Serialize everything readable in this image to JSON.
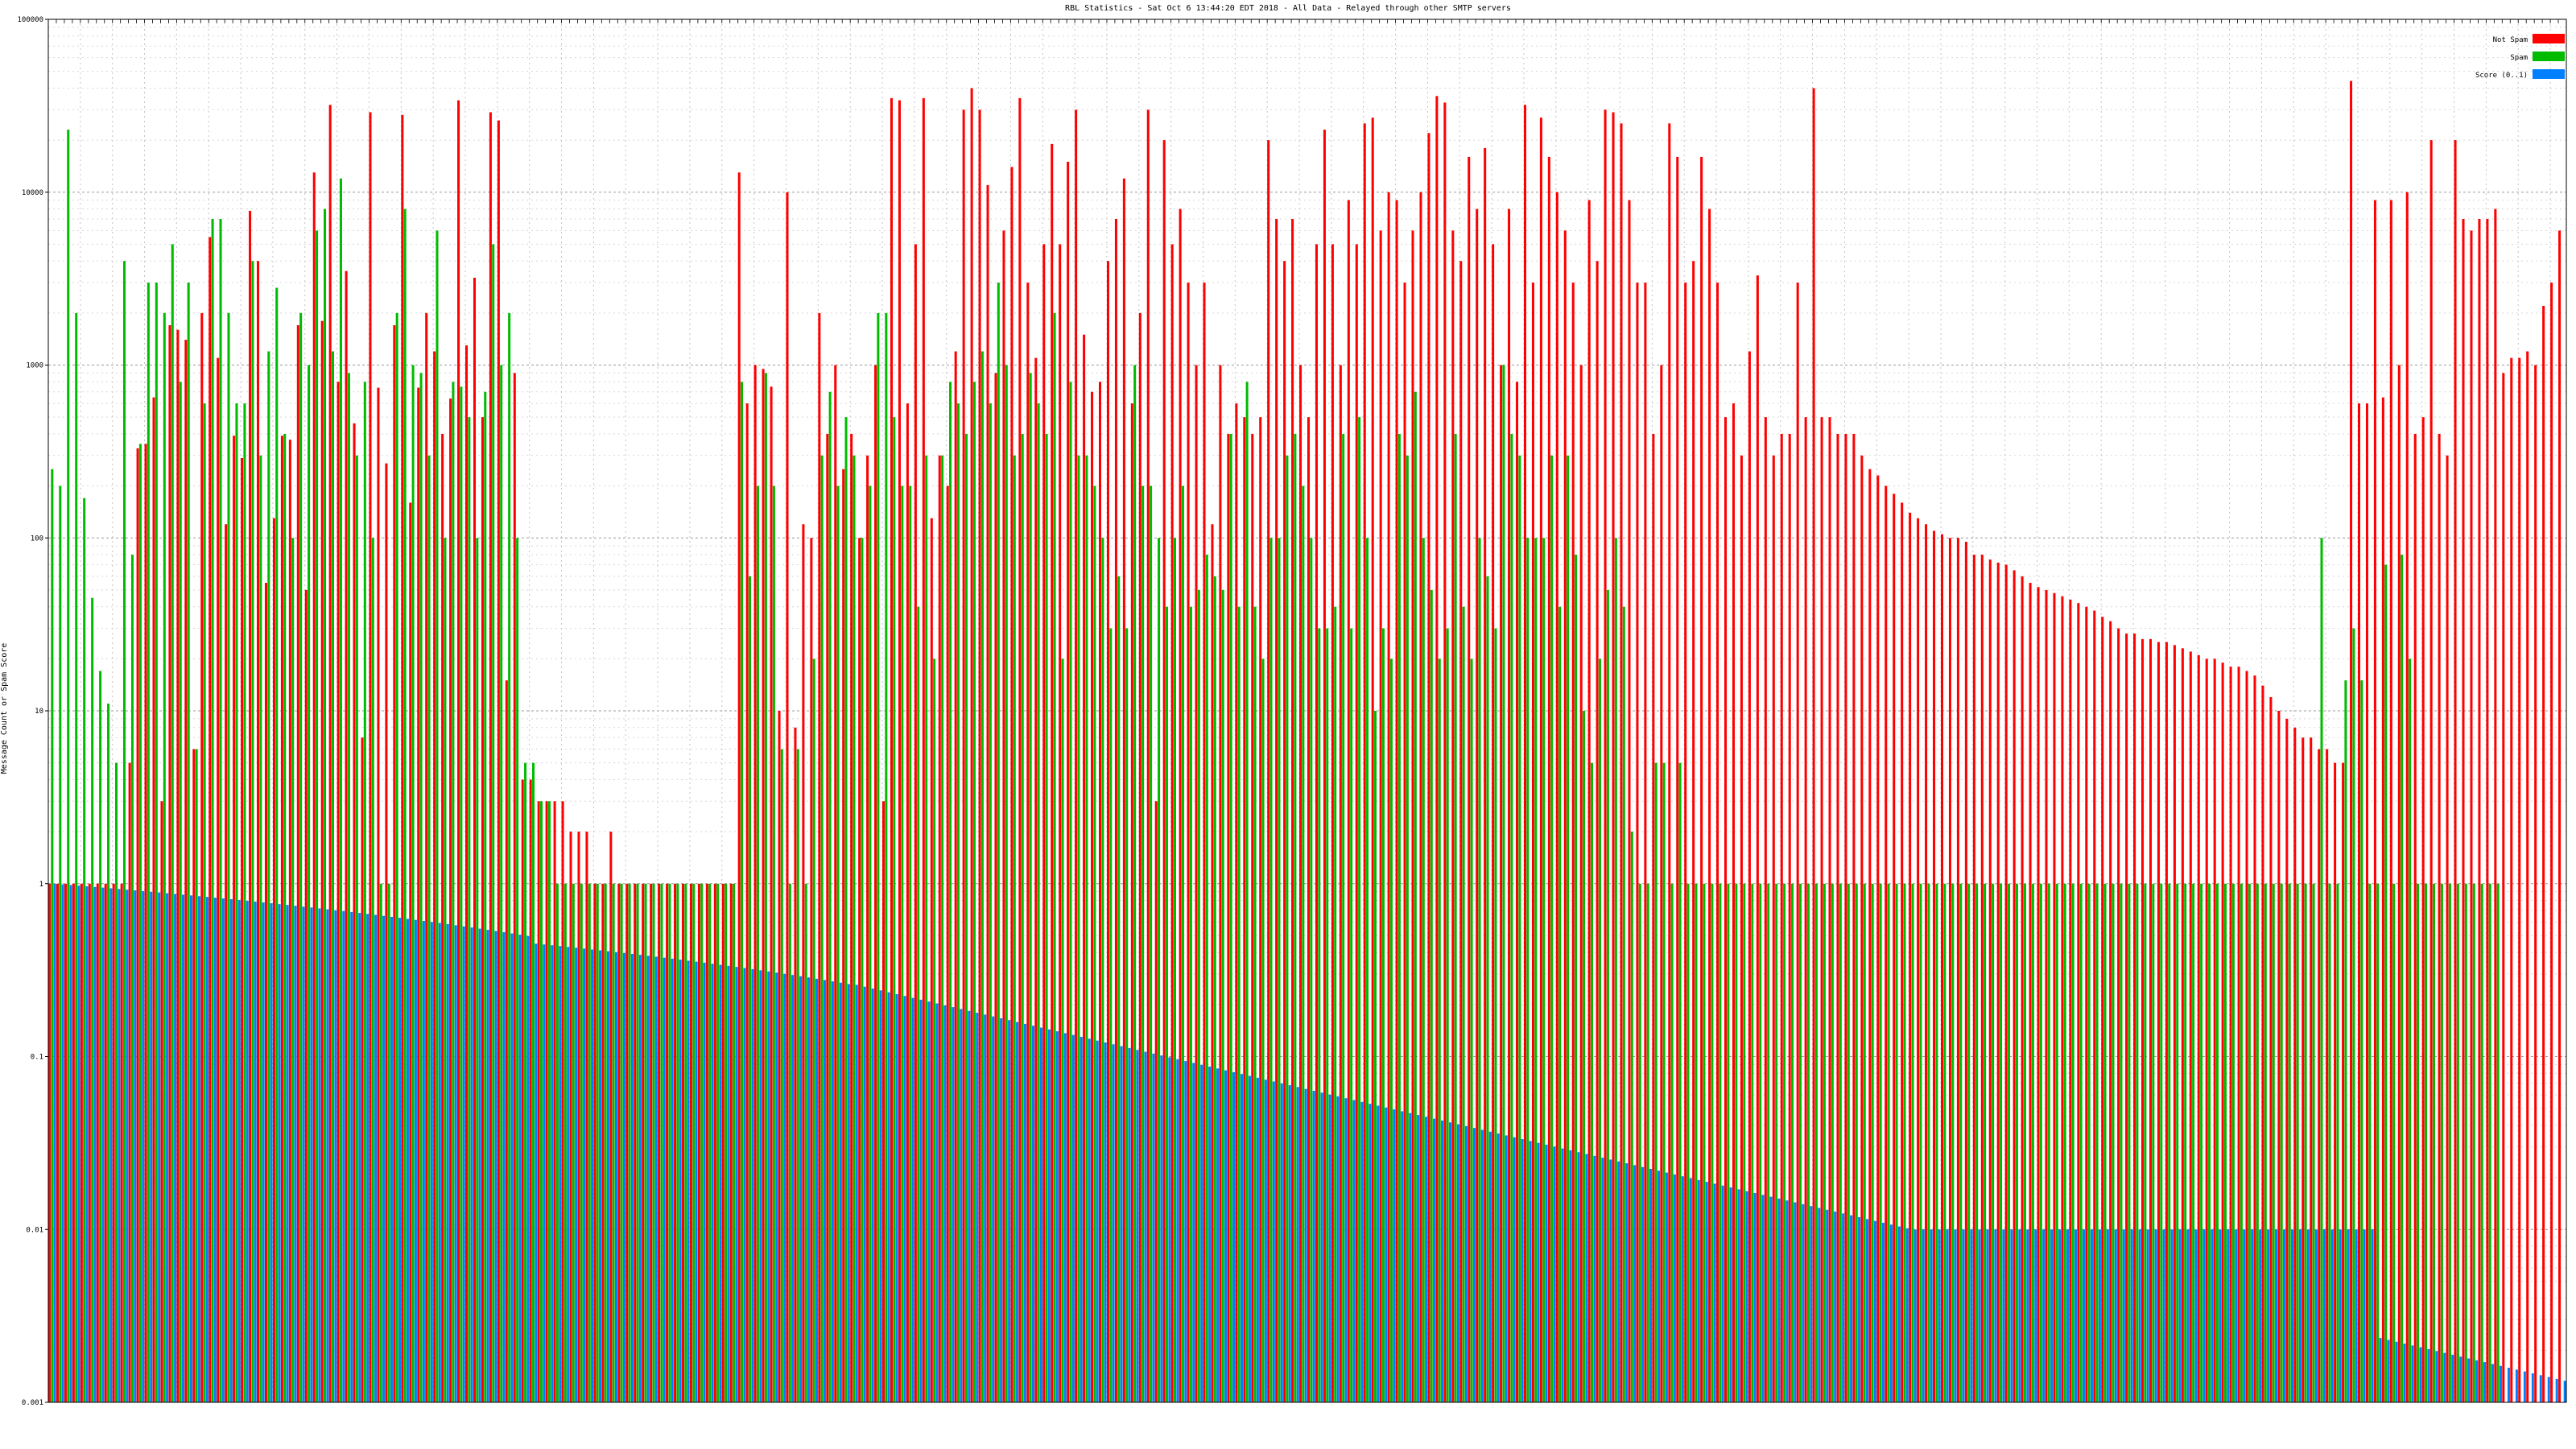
{
  "chart_data": {
    "type": "bar",
    "title": "RBL Statistics - Sat Oct  6 13:44:20 EDT 2018 - All Data - Relayed through other SMTP servers",
    "ylabel": "Message Count or Spam Score",
    "xlabel": "",
    "y_scale": "log",
    "ylim": [
      0.001,
      100000
    ],
    "y_ticks": [
      0.001,
      0.01,
      0.1,
      1,
      10,
      100,
      1000,
      10000,
      100000
    ],
    "y_tick_labels": [
      "0.001",
      "0.01",
      "0.1",
      "1",
      "10",
      "100",
      "1000",
      "10000",
      "100000"
    ],
    "grid": true,
    "legend_position": "top-right",
    "colors": {
      "not_spam": "#ff0000",
      "spam": "#00bb00",
      "score": "#0080ff"
    },
    "series": [
      {
        "name": "Not Spam",
        "color": "#ff0000",
        "key": "not_spam"
      },
      {
        "name": "Spam",
        "color": "#00bb00",
        "key": "spam"
      },
      {
        "name": "Score (0..1)",
        "color": "#0080ff",
        "key": "score"
      }
    ],
    "not_spam": [
      1,
      1,
      1,
      1,
      1,
      1,
      1,
      1,
      1,
      1,
      5,
      330,
      350,
      650,
      3,
      1700,
      1600,
      1400,
      6,
      2000,
      5500,
      1100,
      120,
      390,
      290,
      7800,
      4000,
      55,
      130,
      390,
      370,
      1700,
      50,
      13000,
      1800,
      32000,
      800,
      3500,
      460,
      7,
      29000,
      740,
      270,
      1700,
      28000,
      160,
      740,
      2000,
      1200,
      400,
      640,
      34000,
      1300,
      3200,
      500,
      29000,
      26000,
      15,
      900,
      4,
      4,
      3,
      3,
      3,
      3,
      2,
      2,
      2,
      1,
      1,
      2,
      1,
      1,
      1,
      1,
      1,
      1,
      1,
      1,
      1,
      1,
      1,
      1,
      1,
      1,
      1,
      13000,
      600,
      1000,
      950,
      750,
      10,
      10000,
      8,
      120,
      100,
      2000,
      400,
      1000,
      250,
      400,
      100,
      300,
      1000,
      3,
      35000,
      34000,
      600,
      5000,
      35000,
      130,
      300,
      200,
      1200,
      30000,
      40000,
      30000,
      11000,
      900,
      6000,
      14000,
      35000,
      3000,
      1100,
      5000,
      19000,
      5000,
      15000,
      30000,
      1500,
      700,
      800,
      4000,
      7000,
      12000,
      600,
      2000,
      30000,
      3,
      20000,
      5000,
      8000,
      3000,
      1000,
      3000,
      120,
      1000,
      400,
      600,
      500,
      400,
      500,
      20000,
      7000,
      4000,
      7000,
      1000,
      500,
      5000,
      23000,
      5000,
      1000,
      9000,
      5000,
      25000,
      27000,
      6000,
      10000,
      9000,
      3000,
      6000,
      10000,
      22000,
      36000,
      33000,
      6000,
      4000,
      16000,
      8000,
      18000,
      5000,
      1000,
      8000,
      800,
      32000,
      3000,
      27000,
      16000,
      10000,
      6000,
      3000,
      1000,
      9000,
      4000,
      30000,
      29000,
      25000,
      9000,
      3000,
      3000,
      400,
      1000,
      25000,
      16000,
      3000,
      4000,
      16000,
      8000,
      3000,
      500,
      600,
      300,
      1200,
      3300,
      500,
      300,
      400,
      400,
      3000,
      500,
      40000,
      500,
      500,
      400,
      400,
      400,
      300,
      250,
      230,
      200,
      180,
      160,
      140,
      130,
      120,
      110,
      105,
      100,
      100,
      95,
      80,
      80,
      75,
      72,
      70,
      65,
      60,
      55,
      52,
      50,
      48,
      46,
      44,
      42,
      40,
      38,
      35,
      33,
      30,
      28,
      28,
      26,
      26,
      25,
      25,
      24,
      23,
      22,
      21,
      20,
      20,
      19,
      18,
      18,
      17,
      16,
      14,
      12,
      10,
      9,
      8,
      7,
      7,
      6,
      6,
      5,
      5,
      44000,
      600,
      600,
      9000,
      650,
      9000,
      1000,
      10000,
      400,
      500,
      20000,
      400,
      300,
      20000,
      7000,
      6000,
      7000,
      7000,
      8000,
      900,
      1100,
      1100,
      1200,
      1000,
      2200,
      3000,
      6000
    ],
    "spam": [
      250,
      200,
      23000,
      2000,
      170,
      45,
      17,
      11,
      5,
      4000,
      80,
      350,
      3000,
      3000,
      2000,
      5000,
      800,
      3000,
      6,
      600,
      7000,
      7000,
      2000,
      600,
      600,
      4000,
      300,
      1200,
      2800,
      400,
      100,
      2000,
      1000,
      6000,
      8000,
      1200,
      12000,
      900,
      300,
      800,
      100,
      1,
      1,
      2000,
      8000,
      1000,
      900,
      300,
      6000,
      100,
      800,
      750,
      500,
      100,
      700,
      5000,
      1000,
      2000,
      100,
      5,
      5,
      3,
      3,
      1,
      1,
      1,
      1,
      1,
      1,
      1,
      1,
      1,
      1,
      1,
      1,
      1,
      1,
      1,
      1,
      1,
      1,
      1,
      1,
      1,
      1,
      1,
      800,
      60,
      200,
      900,
      200,
      6,
      1,
      6,
      1,
      20,
      300,
      700,
      200,
      500,
      300,
      100,
      200,
      2000,
      2000,
      500,
      200,
      200,
      40,
      300,
      20,
      300,
      800,
      600,
      400,
      800,
      1200,
      600,
      3000,
      1000,
      300,
      400,
      900,
      600,
      400,
      2000,
      20,
      800,
      300,
      300,
      200,
      100,
      30,
      60,
      30,
      1000,
      200,
      200,
      100,
      40,
      100,
      200,
      40,
      50,
      80,
      60,
      50,
      400,
      40,
      800,
      40,
      20,
      100,
      100,
      300,
      400,
      200,
      100,
      30,
      30,
      40,
      400,
      30,
      500,
      100,
      10,
      30,
      20,
      400,
      300,
      700,
      100,
      50,
      20,
      30,
      400,
      40,
      20,
      100,
      60,
      30,
      1000,
      400,
      300,
      100,
      100,
      100,
      300,
      40,
      300,
      80,
      10,
      5,
      20,
      50,
      100,
      40,
      2,
      1,
      1,
      5,
      5,
      1,
      5,
      1,
      1,
      1,
      1,
      1,
      1,
      1,
      1,
      1,
      1,
      1,
      1,
      1,
      1,
      1,
      1,
      1,
      1,
      1,
      1,
      1,
      1,
      1,
      1,
      1,
      1,
      1,
      1,
      1,
      1,
      1,
      1,
      1,
      1,
      1,
      1,
      1,
      1,
      1,
      1,
      1,
      1,
      1,
      1,
      1,
      1,
      1,
      1,
      1,
      1,
      1,
      1,
      1,
      1,
      1,
      1,
      1,
      1,
      1,
      1,
      1,
      1,
      1,
      1,
      1,
      1,
      1,
      1,
      1,
      1,
      1,
      1,
      1,
      1,
      1,
      1,
      1,
      1,
      1,
      100,
      1,
      1,
      15,
      30,
      15,
      1,
      1,
      70,
      1,
      80,
      20,
      1,
      1,
      1,
      1,
      1,
      1,
      1,
      1,
      1,
      1,
      1
    ],
    "score": []
  }
}
